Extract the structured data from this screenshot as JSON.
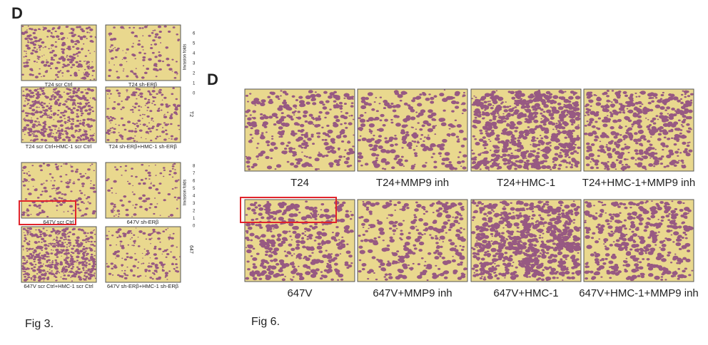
{
  "fig3": {
    "label": "D",
    "panels": [
      "T24 scr Ctrl",
      "T24 sh-ERβ",
      "T24 scr Ctrl+HMC-1 scr Ctrl",
      "T24 sh-ERβ+HMC-1 sh-ERβ",
      "647V scr Ctrl",
      "647V sh-ERβ",
      "647V scr Ctrl+HMC-1 scr Ctrl",
      "647V sh-ERβ+HMC-1 sh-ERβ"
    ],
    "axis_label_top": "Invasion folds",
    "ticks_top": [
      6,
      5,
      4,
      3,
      2,
      1,
      0
    ],
    "side_label_top": "T2",
    "axis_label_bottom": "Invasion folds",
    "ticks_bottom": [
      8,
      7,
      6,
      5,
      4,
      3,
      2,
      1,
      0
    ],
    "side_label_bottom": "647",
    "caption": "Fig 3."
  },
  "fig6": {
    "label": "D",
    "panels": [
      "T24",
      "T24+MMP9 inh",
      "T24+HMC-1",
      "T24+HMC-1+MMP9 inh",
      "647V",
      "647V+MMP9 inh",
      "647V+HMC-1",
      "647V+HMC-1+MMP9 inh"
    ],
    "caption": "Fig 6."
  }
}
